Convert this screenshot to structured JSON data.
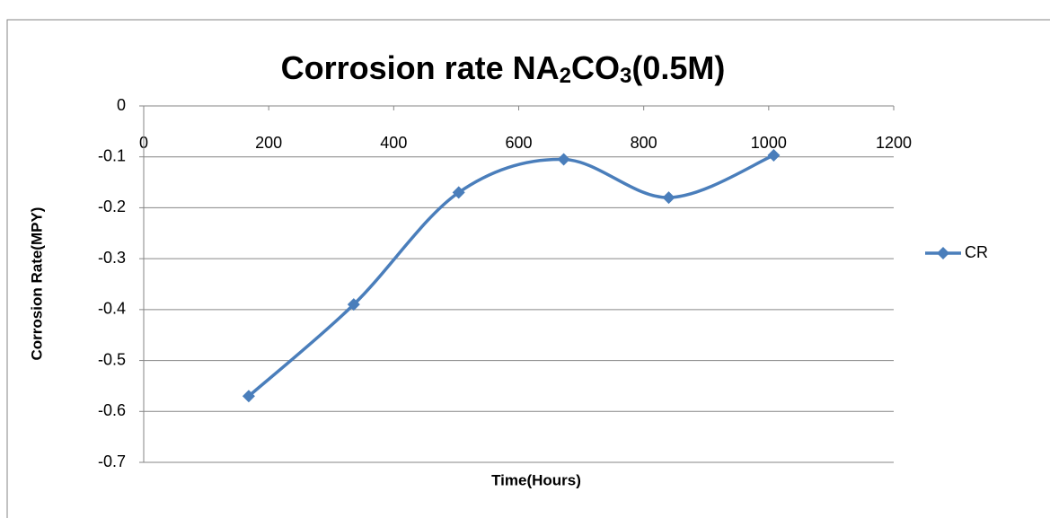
{
  "chart_data": {
    "type": "line",
    "title": "Corrosion rate NA2CO3(0.5M)",
    "x_label": "Time(Hours)",
    "y_label": "Corrosion Rate(MPY)",
    "x": [
      168,
      336,
      504,
      672,
      840,
      1008
    ],
    "series": [
      {
        "name": "CR",
        "color": "#4a7ebb",
        "values": [
          -0.57,
          -0.39,
          -0.17,
          -0.105,
          -0.18,
          -0.097
        ]
      }
    ],
    "xlim": [
      0,
      1200
    ],
    "xticks": [
      0,
      200,
      400,
      600,
      800,
      1000,
      1200
    ],
    "ylim": [
      -0.7,
      0
    ],
    "yticks": [
      0,
      -0.1,
      -0.2,
      -0.3,
      -0.4,
      -0.5,
      -0.6,
      -0.7
    ],
    "grid": true,
    "smooth": true,
    "legend": "right"
  }
}
